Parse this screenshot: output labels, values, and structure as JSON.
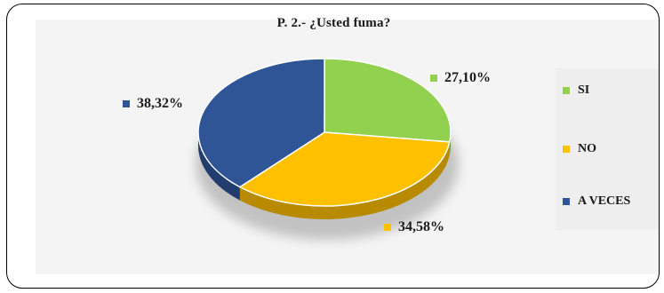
{
  "chart_data": {
    "type": "pie",
    "title": "P. 2.- ¿Usted fuma?",
    "categories": [
      "SI",
      "NO",
      "A VECES"
    ],
    "values": [
      27.1,
      34.58,
      38.32
    ],
    "value_labels": [
      "27,10%",
      "34,58%",
      "38,32%"
    ],
    "colors": [
      "#92d050",
      "#ffc000",
      "#2f5597"
    ],
    "legend_position": "right",
    "style": "3d"
  }
}
